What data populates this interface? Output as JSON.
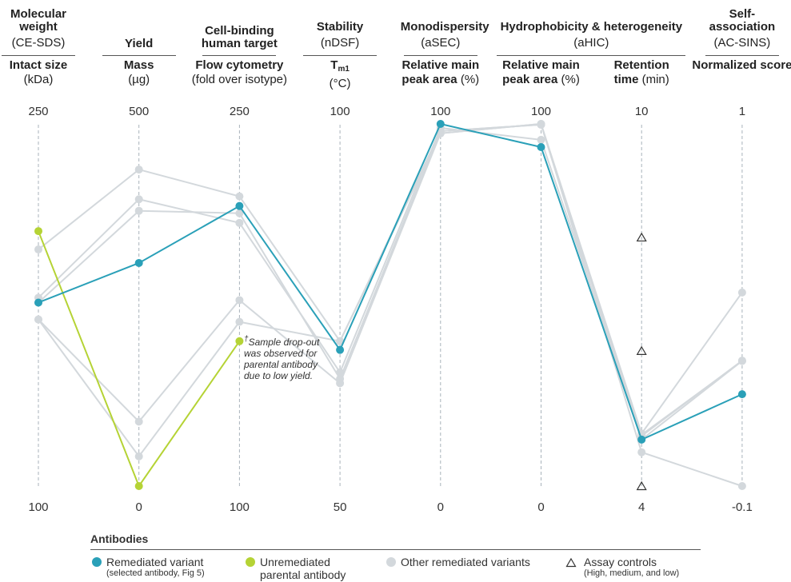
{
  "chart_data": {
    "type": "parallel",
    "groups": [
      {
        "title": "Molecular weight",
        "subtitle": "(CE-SDS)",
        "axes": [
          {
            "metric": "Intact size",
            "unit": "(kDa)",
            "lim": [
              100,
              250
            ],
            "ticks": [
              100,
              250
            ]
          }
        ]
      },
      {
        "title": "Yield",
        "axes": [
          {
            "metric": "Mass",
            "unit": "(µg)",
            "lim": [
              0,
              500
            ],
            "ticks": [
              0,
              500
            ]
          }
        ]
      },
      {
        "title": "Cell-binding human target",
        "axes": [
          {
            "metric": "Flow cytometry",
            "unit": "(fold over isotype)",
            "lim": [
              100,
              250
            ],
            "ticks": [
              100,
              250
            ]
          }
        ]
      },
      {
        "title": "Stability",
        "subtitle": "(nDSF)",
        "axes": [
          {
            "metric": "T",
            "metric_sub": "m1",
            "unit": "(°C)",
            "lim": [
              50,
              100
            ],
            "ticks": [
              50,
              100
            ]
          }
        ]
      },
      {
        "title": "Monodispersity",
        "subtitle": "(aSEC)",
        "axes": [
          {
            "metric": "Relative main peak area",
            "unit": "(%)",
            "lim": [
              0,
              100
            ],
            "ticks": [
              0,
              100
            ]
          }
        ]
      },
      {
        "title": "Hydrophobicity & heterogeneity",
        "subtitle": "(aHIC)",
        "axes": [
          {
            "metric": "Relative main peak area",
            "unit": "(%)",
            "lim": [
              0,
              100
            ],
            "ticks": [
              0,
              100
            ]
          },
          {
            "metric": "Retention time",
            "unit": "(min)",
            "lim": [
              4,
              10
            ],
            "ticks": [
              4,
              10
            ],
            "controls": {
              "name": "Assay controls",
              "note": "(High, medium, and low)",
              "color": "#333333",
              "values": [
                8.12,
                6.24,
                4.0
              ]
            }
          }
        ]
      },
      {
        "title": "Self-association",
        "subtitle": "(AC-SINS)",
        "axes": [
          {
            "metric": "Normalized score",
            "lim": [
              -0.1,
              1
            ],
            "ticks": [
              -0.1,
              1
            ]
          }
        ]
      }
    ],
    "series": [
      {
        "name": "Other remediated variants",
        "color": "#d3d8dc",
        "lines": [
          [
            198,
            437,
            220,
            70,
            97.4,
            100,
            4.87,
            0.488
          ],
          [
            178,
            396,
            209,
            65.7,
            98.9,
            95.6,
            4.83,
            0.281
          ],
          [
            176,
            380,
            213,
            64.8,
            98,
            99.8,
            4.77,
            0.28
          ],
          [
            169,
            89,
            177,
            64.2,
            97.4,
            100,
            4.56,
            -0.1
          ],
          [
            169,
            41,
            168,
            70,
            98,
            99.8,
            4.85,
            0.28
          ]
        ]
      },
      {
        "name": "Unremediated parental antibody",
        "color": "#b5d335",
        "values": [
          205.6,
          0,
          160,
          null,
          null,
          null,
          null,
          null
        ]
      },
      {
        "name": "Remediated variant",
        "note": "(selected antibody, Fig 5)",
        "color": "#2aa0b8",
        "values": [
          176,
          308,
          216,
          68.8,
          100,
          93.6,
          4.77,
          0.179
        ]
      }
    ],
    "legend_title": "Antibodies",
    "annotation": {
      "marker": "†",
      "text": "Sample drop-out was observed for parental antibody due to low yield."
    }
  }
}
